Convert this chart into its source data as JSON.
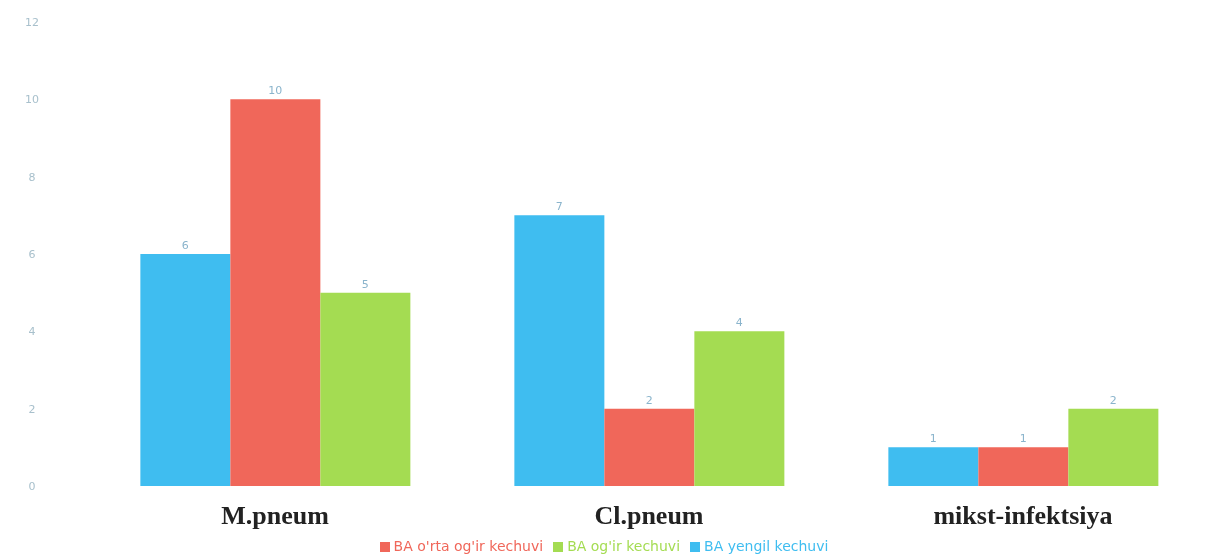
{
  "chart_data": {
    "type": "bar",
    "categories": [
      "M.pneum",
      "Cl.pneum",
      "mikst-infektsiya"
    ],
    "series": [
      {
        "name": "BA yengil kechuvi",
        "color": "#3fbdf0",
        "values": [
          6,
          7,
          1
        ]
      },
      {
        "name": "BA o'rta og'ir kechuvi",
        "color": "#f0675a",
        "values": [
          10,
          2,
          1
        ]
      },
      {
        "name": "BA og'ir kechuvi",
        "color": "#a4dc52",
        "values": [
          5,
          4,
          2
        ]
      }
    ],
    "ylim": [
      0,
      12
    ],
    "yticks": [
      0,
      2,
      4,
      6,
      8,
      10,
      12
    ],
    "grid": false,
    "legend": "bottom",
    "data_labels": true
  }
}
